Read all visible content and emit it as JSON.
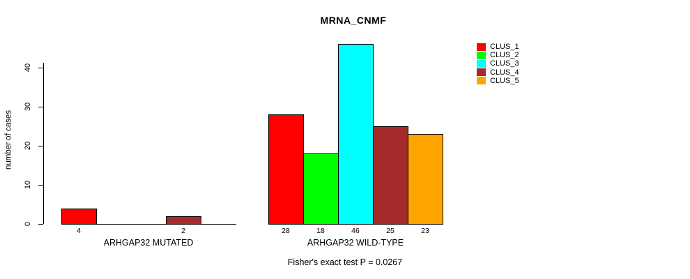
{
  "chart_data": {
    "type": "bar",
    "title": "MRNA_CNMF",
    "ylabel": "number of cases",
    "xlabel": "",
    "ylim": [
      0,
      46
    ],
    "yticks": [
      0,
      10,
      20,
      30,
      40
    ],
    "grid": false,
    "legend_position": "top-right",
    "categories": [
      "CLUS_1",
      "CLUS_2",
      "CLUS_3",
      "CLUS_4",
      "CLUS_5"
    ],
    "colors": [
      "#ff0000",
      "#00ff00",
      "#00ffff",
      "#a52a2a",
      "#ffa500"
    ],
    "groups": [
      {
        "label": "ARHGAP32 MUTATED",
        "values": [
          4,
          0,
          0,
          2,
          0
        ],
        "bar_labels": [
          "4",
          "",
          "",
          "2",
          ""
        ]
      },
      {
        "label": "ARHGAP32 WILD-TYPE",
        "values": [
          28,
          18,
          46,
          25,
          23
        ],
        "bar_labels": [
          "28",
          "18",
          "46",
          "25",
          "23"
        ]
      }
    ],
    "annotation": "Fisher's exact test P = 0.0267"
  }
}
